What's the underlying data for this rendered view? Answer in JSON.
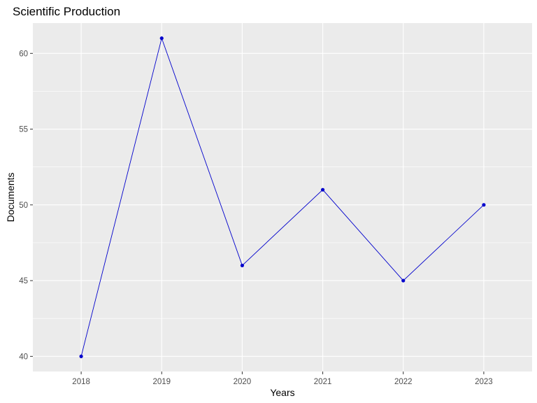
{
  "chart_data": {
    "type": "line",
    "title": "Scientific Production",
    "xlabel": "Years",
    "ylabel": "Documents",
    "x": [
      2018,
      2019,
      2020,
      2021,
      2022,
      2023
    ],
    "series": [
      {
        "values": [
          40,
          61,
          46,
          51,
          45,
          50
        ]
      }
    ],
    "xlim": [
      2017.4,
      2023.6
    ],
    "ylim": [
      39,
      62
    ],
    "yticks": [
      40,
      45,
      50,
      55,
      60
    ],
    "xticks": [
      2018,
      2019,
      2020,
      2021,
      2022,
      2023
    ],
    "grid": true,
    "legend": "none",
    "colors": {
      "line": "#0000cc",
      "point": "#0000cc",
      "panel": "#ebebeb",
      "grid": "#ffffff",
      "tick_text": "#4d4d4d"
    }
  }
}
